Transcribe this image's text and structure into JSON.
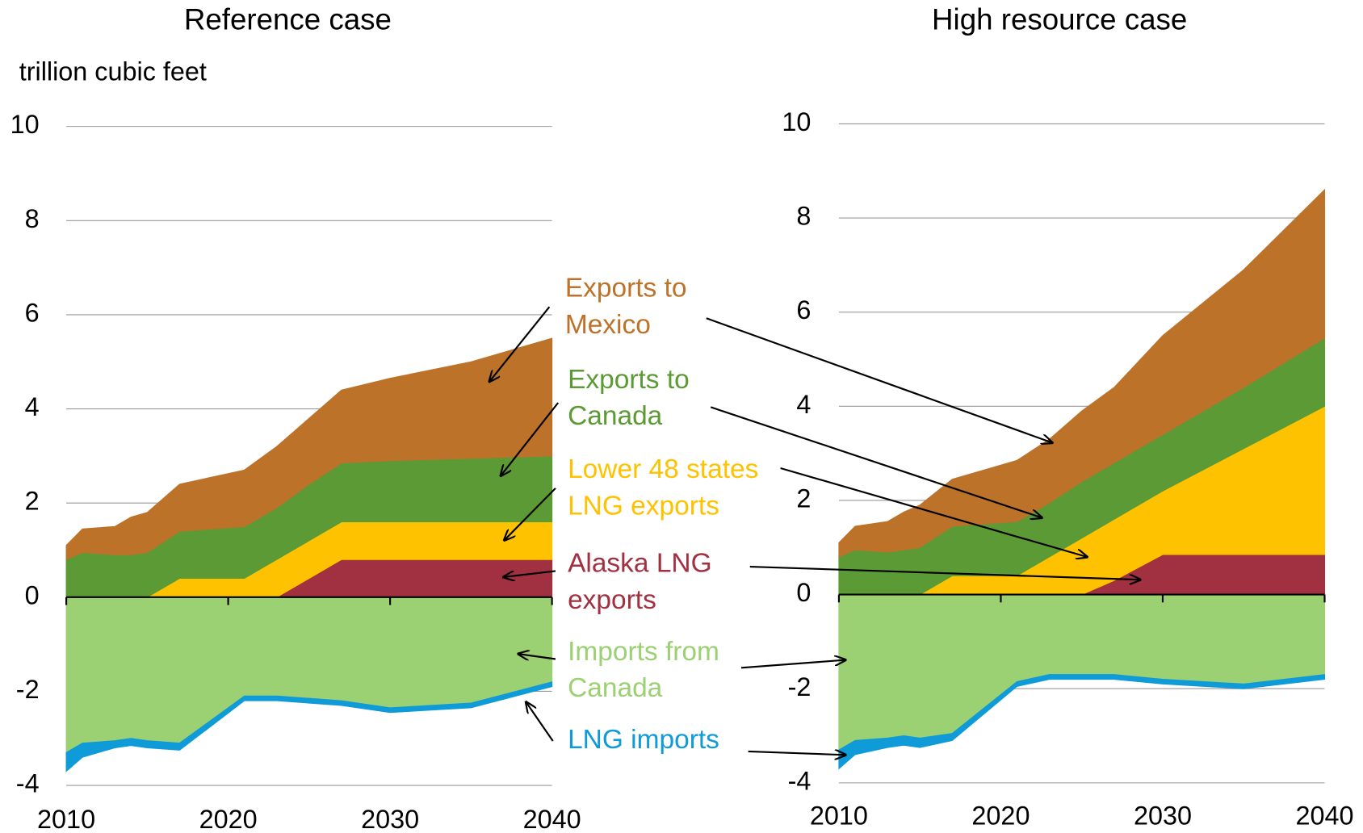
{
  "chart_data": [
    {
      "type": "stacked_area",
      "title": "Reference case",
      "y_label": "trillion cubic feet",
      "x": [
        2010,
        2011,
        2013,
        2014,
        2015,
        2017,
        2021,
        2023,
        2025,
        2027,
        2030,
        2035,
        2040
      ],
      "xlim": [
        2010,
        2040
      ],
      "xticks": [
        2010,
        2020,
        2030,
        2040
      ],
      "ylim": [
        -4,
        10
      ],
      "yticks": [
        -4,
        -2,
        0,
        2,
        4,
        6,
        8,
        10
      ],
      "grid": true,
      "series": [
        {
          "color": "#a13040",
          "values": [
            0,
            0,
            0,
            0,
            0,
            0,
            0,
            0,
            0.4,
            0.8,
            0.8,
            0.8,
            0.8
          ]
        },
        {
          "color": "#ffc200",
          "values": [
            0,
            0,
            0,
            0,
            0,
            0.4,
            0.4,
            0.8,
            0.8,
            0.8,
            0.8,
            0.8,
            0.8
          ]
        },
        {
          "color": "#5b9a34",
          "values": [
            0.8,
            0.95,
            0.9,
            0.9,
            0.95,
            1.0,
            1.1,
            1.1,
            1.2,
            1.25,
            1.3,
            1.35,
            1.4
          ]
        },
        {
          "color": "#bd722a",
          "values": [
            0.3,
            0.5,
            0.6,
            0.8,
            0.85,
            1.0,
            1.2,
            1.3,
            1.4,
            1.55,
            1.75,
            2.05,
            2.5
          ]
        },
        {
          "color": "#9bd073",
          "values": [
            -3.3,
            -3.1,
            -3.05,
            -3.0,
            -3.05,
            -3.1,
            -2.1,
            -2.1,
            -2.15,
            -2.2,
            -2.35,
            -2.25,
            -1.8
          ]
        },
        {
          "color": "#0f9ad8",
          "values": [
            -0.4,
            -0.3,
            -0.15,
            -0.15,
            -0.15,
            -0.15,
            -0.1,
            -0.1,
            -0.1,
            -0.1,
            -0.1,
            -0.1,
            -0.1
          ]
        }
      ]
    },
    {
      "type": "stacked_area",
      "title": "High resource case",
      "x": [
        2010,
        2011,
        2013,
        2014,
        2015,
        2017,
        2021,
        2023,
        2025,
        2027,
        2030,
        2035,
        2040
      ],
      "xlim": [
        2010,
        2040
      ],
      "xticks": [
        2010,
        2020,
        2030,
        2040
      ],
      "ylim": [
        -4,
        10
      ],
      "yticks": [
        -4,
        -2,
        0,
        2,
        4,
        6,
        8,
        10
      ],
      "grid": true,
      "series": [
        {
          "color": "#a13040",
          "values": [
            0,
            0,
            0,
            0,
            0,
            0,
            0,
            0,
            0,
            0.3,
            0.85,
            0.85,
            0.85
          ]
        },
        {
          "color": "#ffc200",
          "values": [
            0,
            0,
            0,
            0,
            0,
            0.4,
            0.4,
            0.8,
            1.2,
            1.3,
            1.35,
            2.25,
            3.15
          ]
        },
        {
          "color": "#5b9a34",
          "values": [
            0.8,
            0.95,
            0.9,
            0.95,
            1.0,
            1.05,
            1.15,
            1.15,
            1.2,
            1.2,
            1.2,
            1.3,
            1.45
          ]
        },
        {
          "color": "#bd722a",
          "values": [
            0.3,
            0.5,
            0.65,
            0.8,
            0.9,
            1.0,
            1.3,
            1.35,
            1.5,
            1.6,
            2.1,
            2.5,
            3.15
          ]
        },
        {
          "color": "#9bd073",
          "values": [
            -3.3,
            -3.1,
            -3.05,
            -3.0,
            -3.05,
            -2.95,
            -1.85,
            -1.7,
            -1.7,
            -1.7,
            -1.8,
            -1.9,
            -1.7
          ]
        },
        {
          "color": "#0f9ad8",
          "values": [
            -0.4,
            -0.3,
            -0.2,
            -0.2,
            -0.2,
            -0.15,
            -0.1,
            -0.1,
            -0.1,
            -0.1,
            -0.1,
            -0.1,
            -0.1
          ]
        }
      ]
    }
  ],
  "annotations": [
    {
      "lines": [
        "Exports to",
        "Mexico"
      ],
      "color": "#bd722a"
    },
    {
      "lines": [
        "Exports to",
        "Canada"
      ],
      "color": "#5b9a34"
    },
    {
      "lines": [
        "Lower 48 states",
        "LNG exports"
      ],
      "color": "#ffc200"
    },
    {
      "lines": [
        "Alaska LNG",
        "exports"
      ],
      "color": "#a13040"
    },
    {
      "lines": [
        "Imports from",
        "Canada"
      ],
      "color": "#9bd073"
    },
    {
      "lines": [
        "LNG imports"
      ],
      "color": "#0f9ad8"
    }
  ]
}
